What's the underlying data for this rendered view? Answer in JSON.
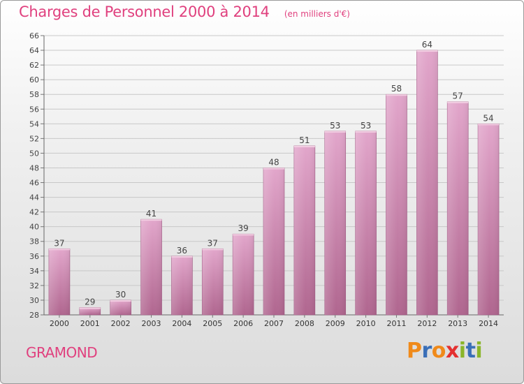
{
  "header": {
    "title": "Charges de Personnel 2000 à 2014",
    "subtitle": "(en milliers d'€)"
  },
  "footer": {
    "place": "GRAMOND",
    "brand": "Proxiti"
  },
  "colors": {
    "bar_top": "#e2a6cb",
    "bar_bottom": "#b0668f",
    "title": "#e0407e",
    "brand_letters": [
      "#f08a1a",
      "#3a6fb8",
      "#f08a1a",
      "#e43030",
      "#8ab52a",
      "#3a6fb8",
      "#8ab52a"
    ]
  },
  "chart_data": {
    "type": "bar",
    "title": "Charges de Personnel 2000 à 2014",
    "subtitle": "(en milliers d'€)",
    "categories": [
      "2000",
      "2001",
      "2002",
      "2003",
      "2004",
      "2005",
      "2006",
      "2007",
      "2008",
      "2009",
      "2010",
      "2011",
      "2012",
      "2013",
      "2014"
    ],
    "values": [
      37,
      29,
      30,
      41,
      36,
      37,
      39,
      48,
      51,
      53,
      53,
      58,
      64,
      57,
      54
    ],
    "ylim": [
      28,
      66
    ],
    "yticks": [
      28,
      30,
      32,
      34,
      36,
      38,
      40,
      42,
      44,
      46,
      48,
      50,
      52,
      54,
      56,
      58,
      60,
      62,
      64,
      66
    ],
    "grid": true,
    "data_labels": true,
    "legend": "none"
  }
}
